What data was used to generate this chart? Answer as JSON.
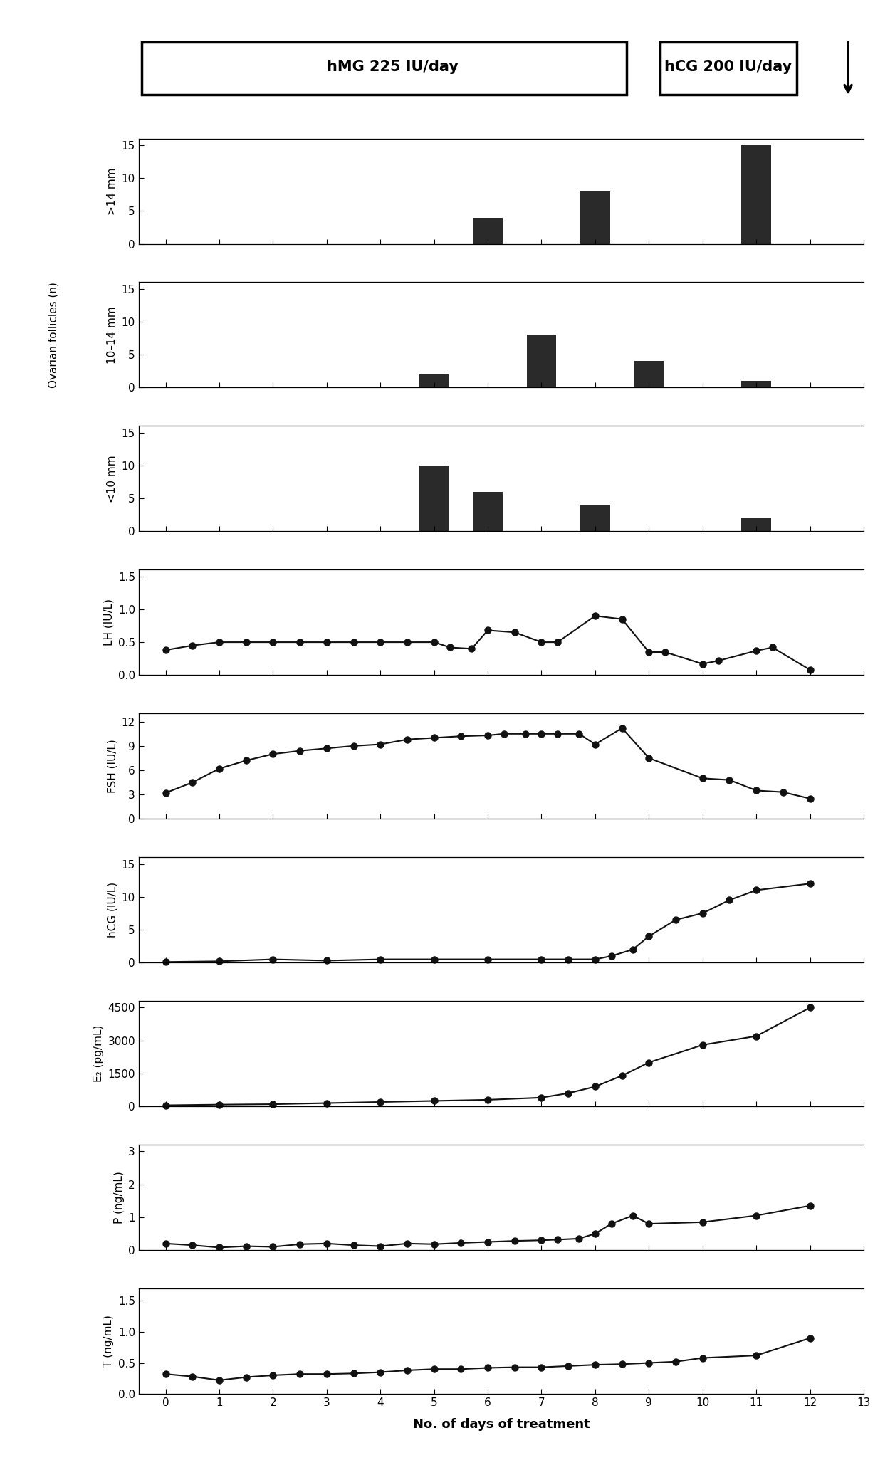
{
  "follicles_gt14_days": [
    6,
    8,
    11
  ],
  "follicles_gt14_vals": [
    4,
    8,
    15
  ],
  "follicles_10_14_days": [
    5,
    7,
    9,
    11
  ],
  "follicles_10_14_vals": [
    2,
    8,
    4,
    1
  ],
  "follicles_lt10_days": [
    5,
    6,
    8,
    9,
    11
  ],
  "follicles_lt10_vals": [
    10,
    6,
    4,
    0,
    2
  ],
  "LH_days": [
    0,
    0.5,
    1,
    1.5,
    2,
    2.5,
    3,
    3.5,
    4,
    4.5,
    5,
    5.3,
    5.7,
    6,
    6.5,
    7,
    7.3,
    8,
    8.5,
    9,
    9.3,
    10,
    10.3,
    11,
    11.3,
    12
  ],
  "LH_vals": [
    0.38,
    0.45,
    0.5,
    0.5,
    0.5,
    0.5,
    0.5,
    0.5,
    0.5,
    0.5,
    0.5,
    0.42,
    0.4,
    0.68,
    0.65,
    0.5,
    0.5,
    0.9,
    0.85,
    0.35,
    0.35,
    0.17,
    0.22,
    0.37,
    0.42,
    0.08
  ],
  "FSH_days": [
    0,
    0.5,
    1,
    1.5,
    2,
    2.5,
    3,
    3.5,
    4,
    4.5,
    5,
    5.5,
    6,
    6.3,
    6.7,
    7,
    7.3,
    7.7,
    8,
    8.5,
    9,
    10,
    10.5,
    11,
    11.5,
    12
  ],
  "FSH_vals": [
    3.2,
    4.5,
    6.2,
    7.2,
    8.0,
    8.4,
    8.7,
    9.0,
    9.2,
    9.8,
    10.0,
    10.2,
    10.3,
    10.5,
    10.5,
    10.5,
    10.5,
    10.5,
    9.2,
    11.2,
    7.5,
    5.0,
    4.8,
    3.5,
    3.3,
    2.5
  ],
  "hCG_days": [
    0,
    1,
    2,
    3,
    4,
    5,
    6,
    7,
    7.5,
    8,
    8.3,
    8.7,
    9,
    9.5,
    10,
    10.5,
    11,
    12
  ],
  "hCG_vals": [
    0.1,
    0.2,
    0.5,
    0.3,
    0.5,
    0.5,
    0.5,
    0.5,
    0.5,
    0.5,
    1.0,
    2.0,
    4.0,
    6.5,
    7.5,
    9.5,
    11.0,
    12.0
  ],
  "E2_days": [
    0,
    1,
    2,
    3,
    4,
    5,
    6,
    7,
    7.5,
    8,
    8.5,
    9,
    10,
    11,
    12
  ],
  "E2_vals": [
    50,
    80,
    100,
    150,
    200,
    250,
    300,
    400,
    600,
    900,
    1400,
    2000,
    2800,
    3200,
    4500
  ],
  "P_days": [
    0,
    0.5,
    1,
    1.5,
    2,
    2.5,
    3,
    3.5,
    4,
    4.5,
    5,
    5.5,
    6,
    6.5,
    7,
    7.3,
    7.7,
    8,
    8.3,
    8.7,
    9,
    10,
    11,
    12
  ],
  "P_vals": [
    0.2,
    0.15,
    0.08,
    0.12,
    0.1,
    0.18,
    0.2,
    0.15,
    0.12,
    0.2,
    0.18,
    0.22,
    0.25,
    0.28,
    0.3,
    0.32,
    0.35,
    0.5,
    0.8,
    1.05,
    0.8,
    0.85,
    1.05,
    1.35
  ],
  "T_days": [
    0,
    0.5,
    1,
    1.5,
    2,
    2.5,
    3,
    3.5,
    4,
    4.5,
    5,
    5.5,
    6,
    6.5,
    7,
    7.5,
    8,
    8.5,
    9,
    9.5,
    10,
    11,
    12
  ],
  "T_vals": [
    0.32,
    0.28,
    0.22,
    0.27,
    0.3,
    0.32,
    0.32,
    0.33,
    0.35,
    0.38,
    0.4,
    0.4,
    0.42,
    0.43,
    0.43,
    0.45,
    0.47,
    0.48,
    0.5,
    0.52,
    0.58,
    0.62,
    0.9
  ],
  "bar_color": "#2a2a2a",
  "line_color": "#111111",
  "marker_color": "#111111",
  "bg_color": "#ffffff",
  "xlabel": "No. of days of treatment",
  "hmg_label": "hMG 225 IU/day",
  "hcg_label": "hCG 200 IU/day",
  "ylabel_fol1": ">14 mm",
  "ylabel_fol2": "10–14 mm",
  "ylabel_fol3": "<10 mm",
  "ylabel_ovarian": "Ovarian follicles (n)",
  "ylabel_LH": "LH (IU/L)",
  "ylabel_FSH": "FSH (IU/L)",
  "ylabel_hCG": "hCG (IU/L)",
  "ylabel_E2": "E₂ (pg/mL)",
  "ylabel_P": "P (ng/mL)",
  "ylabel_T": "T (ng/mL)"
}
